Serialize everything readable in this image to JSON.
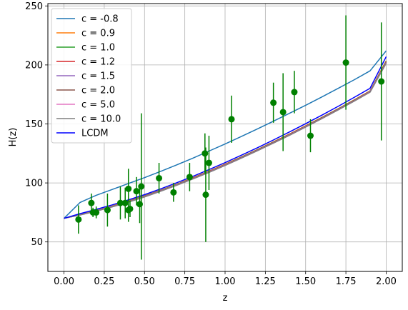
{
  "chart_data": {
    "type": "line",
    "title": "",
    "xlabel": "z",
    "ylabel": "H(z)",
    "xlim": [
      -0.1,
      2.1
    ],
    "ylim": [
      25,
      252
    ],
    "xticks": [
      0.0,
      0.25,
      0.5,
      0.75,
      1.0,
      1.25,
      1.5,
      1.75,
      2.0
    ],
    "xtick_labels": [
      "0.00",
      "0.25",
      "0.50",
      "0.75",
      "1.00",
      "1.25",
      "1.50",
      "1.75",
      "2.00"
    ],
    "yticks": [
      50,
      100,
      150,
      200,
      250
    ],
    "ytick_labels": [
      "50",
      "100",
      "150",
      "200",
      "250"
    ],
    "grid": true,
    "legend_position": "top-left",
    "x": [
      0.0,
      0.1,
      0.2,
      0.3,
      0.4,
      0.5,
      0.6,
      0.7,
      0.8,
      0.9,
      1.0,
      1.1,
      1.2,
      1.3,
      1.4,
      1.5,
      1.6,
      1.7,
      1.8,
      1.9,
      2.0
    ],
    "series": [
      {
        "name": "c = -0.8",
        "color": "#1f77b4",
        "values": [
          70.0,
          83.5,
          89.5,
          94.5,
          99.5,
          104.5,
          109.8,
          115.3,
          121.0,
          127.0,
          133.0,
          139.3,
          145.7,
          152.3,
          159.0,
          165.8,
          172.8,
          180.0,
          187.3,
          195.0,
          212.0
        ]
      },
      {
        "name": "c = 0.9",
        "color": "#ff7f0e",
        "values": [
          70.0,
          73.2,
          76.6,
          80.4,
          84.6,
          89.1,
          93.9,
          99.0,
          104.4,
          110.0,
          115.9,
          122.0,
          128.3,
          134.8,
          141.5,
          148.4,
          155.5,
          162.8,
          170.3,
          178.0,
          203.5
        ]
      },
      {
        "name": "c = 1.0",
        "color": "#2ca02c",
        "values": [
          70.0,
          73.1,
          76.5,
          80.2,
          84.4,
          88.9,
          93.7,
          98.8,
          104.2,
          109.8,
          115.7,
          121.8,
          128.1,
          134.6,
          141.3,
          148.2,
          155.3,
          162.6,
          170.1,
          177.8,
          203.0
        ]
      },
      {
        "name": "c = 1.2",
        "color": "#d62728",
        "values": [
          70.0,
          73.0,
          76.4,
          80.1,
          84.2,
          88.7,
          93.5,
          98.6,
          104.0,
          109.6,
          115.5,
          121.6,
          127.9,
          134.4,
          141.1,
          148.0,
          155.1,
          162.4,
          169.9,
          177.6,
          202.6
        ]
      },
      {
        "name": "c = 1.5",
        "color": "#9467bd",
        "values": [
          70.0,
          73.0,
          76.3,
          80.0,
          84.1,
          88.6,
          93.4,
          98.5,
          103.8,
          109.4,
          115.3,
          121.4,
          127.7,
          134.2,
          140.9,
          147.8,
          154.9,
          162.2,
          169.7,
          177.4,
          202.3
        ]
      },
      {
        "name": "c = 2.0",
        "color": "#8c564b",
        "values": [
          70.0,
          72.9,
          76.2,
          79.9,
          84.0,
          88.4,
          93.2,
          98.3,
          103.6,
          109.2,
          115.1,
          121.2,
          127.5,
          134.0,
          140.7,
          147.6,
          154.7,
          162.0,
          169.5,
          177.2,
          202.0
        ]
      },
      {
        "name": "c = 5.0",
        "color": "#e377c2",
        "values": [
          70.0,
          72.8,
          76.1,
          79.8,
          83.8,
          88.2,
          93.0,
          98.1,
          103.4,
          109.0,
          114.9,
          121.0,
          127.3,
          133.8,
          140.5,
          147.4,
          154.5,
          161.8,
          169.3,
          177.0,
          201.6
        ]
      },
      {
        "name": "c = 10.0",
        "color": "#7f7f7f",
        "values": [
          70.0,
          72.8,
          76.0,
          79.7,
          83.7,
          88.1,
          92.9,
          98.0,
          103.3,
          108.9,
          114.8,
          120.9,
          127.2,
          133.7,
          140.4,
          147.3,
          154.4,
          161.7,
          169.2,
          176.9,
          201.4
        ]
      },
      {
        "name": "LCDM",
        "color": "#0000ff",
        "values": [
          70.0,
          74.0,
          77.6,
          81.4,
          85.6,
          90.1,
          95.0,
          100.2,
          105.6,
          111.3,
          117.2,
          123.4,
          129.8,
          136.4,
          143.2,
          150.2,
          157.4,
          164.8,
          172.4,
          180.2,
          207.0
        ]
      }
    ],
    "observations": {
      "color": "#008000",
      "points": [
        {
          "x": 0.09,
          "y": 69,
          "err": 12
        },
        {
          "x": 0.17,
          "y": 83,
          "err": 8
        },
        {
          "x": 0.18,
          "y": 75,
          "err": 4
        },
        {
          "x": 0.2,
          "y": 75,
          "err": 5
        },
        {
          "x": 0.27,
          "y": 77,
          "err": 14
        },
        {
          "x": 0.35,
          "y": 83,
          "err": 14
        },
        {
          "x": 0.38,
          "y": 83,
          "err": 13
        },
        {
          "x": 0.4,
          "y": 95,
          "err": 17
        },
        {
          "x": 0.4,
          "y": 77,
          "err": 10
        },
        {
          "x": 0.41,
          "y": 78,
          "err": 7
        },
        {
          "x": 0.45,
          "y": 93,
          "err": 12
        },
        {
          "x": 0.47,
          "y": 82,
          "err": 16
        },
        {
          "x": 0.48,
          "y": 97,
          "err": 62
        },
        {
          "x": 0.59,
          "y": 104,
          "err": 13
        },
        {
          "x": 0.68,
          "y": 92,
          "err": 8
        },
        {
          "x": 0.78,
          "y": 105,
          "err": 12
        },
        {
          "x": 0.875,
          "y": 125,
          "err": 17
        },
        {
          "x": 0.88,
          "y": 90,
          "err": 40
        },
        {
          "x": 0.9,
          "y": 117,
          "err": 23
        },
        {
          "x": 1.04,
          "y": 154,
          "err": 20
        },
        {
          "x": 1.3,
          "y": 168,
          "err": 17
        },
        {
          "x": 1.36,
          "y": 160,
          "err": 33
        },
        {
          "x": 1.43,
          "y": 177,
          "err": 18
        },
        {
          "x": 1.53,
          "y": 140,
          "err": 14
        },
        {
          "x": 1.75,
          "y": 202,
          "err": 40
        },
        {
          "x": 1.97,
          "y": 186,
          "err": 50
        }
      ]
    }
  }
}
